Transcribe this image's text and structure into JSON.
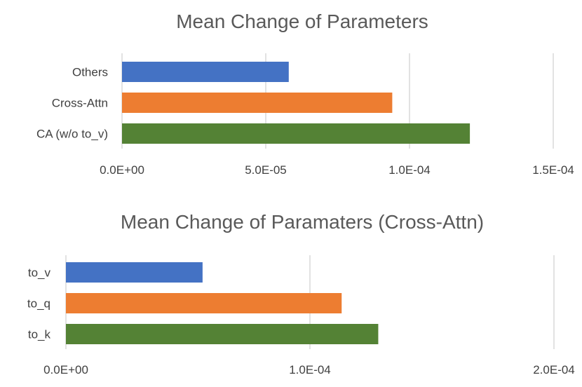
{
  "chart_data": [
    {
      "type": "bar",
      "orientation": "horizontal",
      "title": "Mean Change of Parameters",
      "categories": [
        "Others",
        "Cross-Attn",
        "CA (w/o to_v)"
      ],
      "values": [
        5.8e-05,
        9.4e-05,
        0.000121
      ],
      "colors": [
        "#4472C4",
        "#ED7D31",
        "#548235"
      ],
      "xlim": [
        0,
        0.00015
      ],
      "xticks": [
        0,
        5e-05,
        0.0001,
        0.00015
      ],
      "xtick_labels": [
        "0.0E+00",
        "5.0E-05",
        "1.0E-04",
        "1.5E-04"
      ],
      "grid": true,
      "legend": "none"
    },
    {
      "type": "bar",
      "orientation": "horizontal",
      "title": "Mean Change of Paramaters (Cross-Attn)",
      "categories": [
        "to_v",
        "to_q",
        "to_k"
      ],
      "values": [
        5.6e-05,
        0.000113,
        0.000128
      ],
      "colors": [
        "#4472C4",
        "#ED7D31",
        "#548235"
      ],
      "xlim": [
        0,
        0.0002
      ],
      "xticks": [
        0,
        0.0001,
        0.0002
      ],
      "xtick_labels": [
        "0.0E+00",
        "1.0E-04",
        "2.0E-04"
      ],
      "grid": true,
      "legend": "none"
    }
  ]
}
